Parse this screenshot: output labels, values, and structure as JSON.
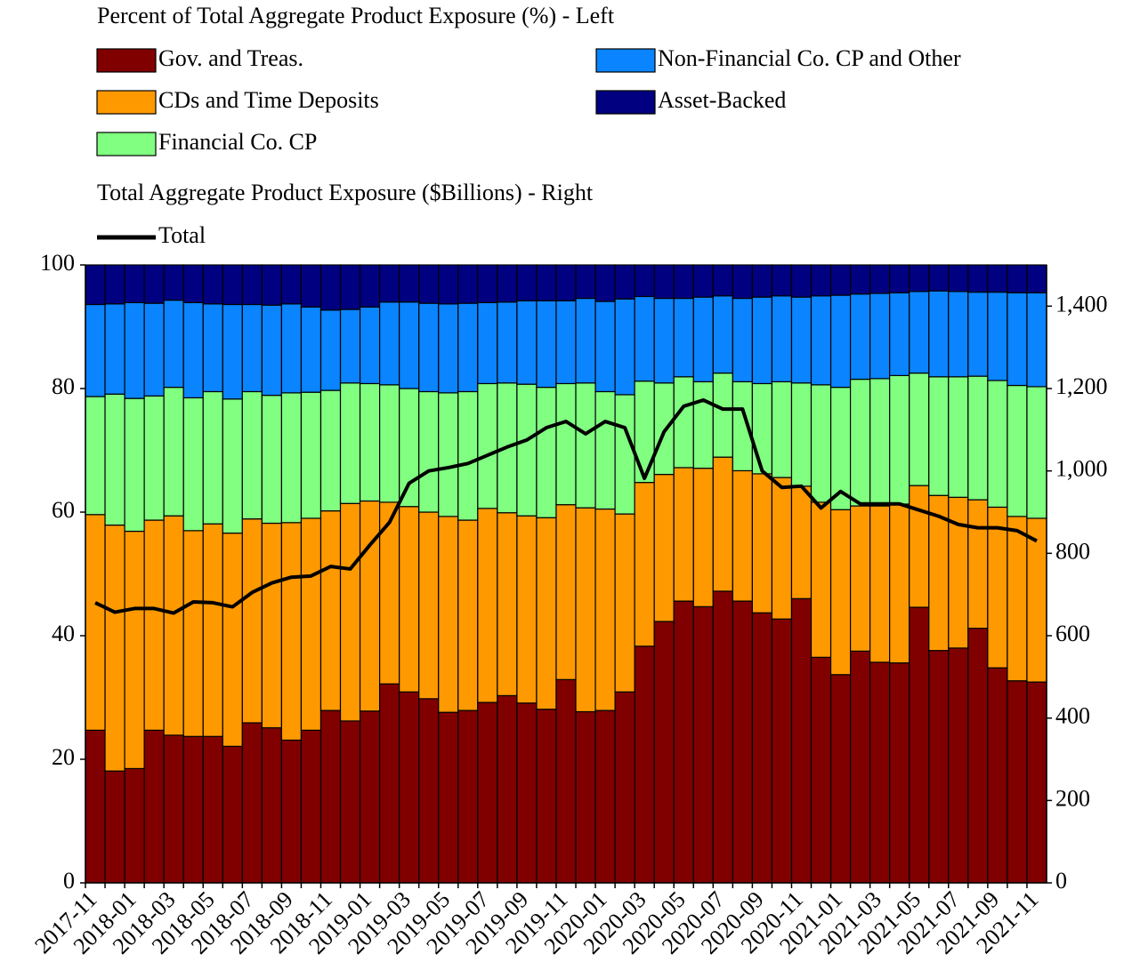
{
  "chart_data": {
    "type": "bar",
    "legend_titles": [
      "Percent of Total Aggregate Product Exposure (%) - Left",
      "Total Aggregate Product Exposure ($Billions) - Right"
    ],
    "categories": [
      "2017-11",
      null,
      "2018-01",
      null,
      "2018-03",
      null,
      "2018-05",
      null,
      "2018-07",
      null,
      "2018-09",
      null,
      "2018-11",
      null,
      "2019-01",
      null,
      "2019-03",
      null,
      "2019-05",
      null,
      "2019-07",
      null,
      "2019-09",
      null,
      "2019-11",
      null,
      "2020-01",
      null,
      "2020-03",
      null,
      "2020-05",
      null,
      "2020-07",
      null,
      "2020-09",
      null,
      "2020-11",
      null,
      "2021-01",
      null,
      "2021-03",
      null,
      "2021-05",
      null,
      "2021-07",
      null,
      "2021-09",
      null,
      "2021-11"
    ],
    "stacked": true,
    "series": [
      {
        "name": "Gov. and Treas.",
        "color": "#800000",
        "values": [
          24.7,
          18.1,
          18.5,
          24.7,
          23.9,
          23.7,
          23.7,
          22.1,
          25.9,
          25.1,
          23.1,
          24.7,
          27.9,
          26.2,
          27.8,
          32.2,
          30.9,
          29.8,
          27.6,
          27.9,
          29.2,
          30.3,
          29.1,
          28.1,
          32.9,
          27.7,
          27.9,
          30.9,
          38.3,
          42.3,
          45.6,
          44.7,
          47.2,
          45.6,
          43.7,
          42.7,
          46.0,
          36.5,
          33.7,
          37.5,
          35.7,
          35.6,
          44.6,
          37.6,
          38.0,
          41.2,
          34.8,
          32.7,
          32.5
        ]
      },
      {
        "name": "CDs and Time Deposits",
        "color": "#FF9900",
        "values": [
          34.9,
          39.8,
          38.4,
          34.0,
          35.5,
          33.3,
          34.4,
          34.5,
          33.0,
          33.1,
          35.2,
          34.3,
          32.3,
          35.2,
          34.0,
          29.4,
          30.0,
          30.2,
          31.7,
          30.8,
          31.4,
          29.6,
          30.3,
          31.0,
          28.3,
          33.0,
          32.6,
          28.8,
          26.5,
          23.8,
          21.6,
          22.4,
          21.7,
          21.1,
          22.5,
          22.9,
          18.2,
          25.1,
          26.7,
          23.5,
          25.3,
          25.7,
          19.7,
          25.1,
          24.4,
          20.8,
          26.0,
          26.6,
          26.5
        ]
      },
      {
        "name": "Financial Co. CP",
        "color": "#80FF80",
        "values": [
          19.1,
          21.2,
          21.5,
          20.1,
          20.8,
          21.5,
          21.4,
          21.7,
          20.6,
          20.7,
          21.0,
          20.4,
          19.5,
          19.5,
          19.0,
          19.0,
          19.1,
          19.5,
          20.0,
          20.8,
          20.2,
          21.0,
          21.3,
          21.1,
          19.6,
          20.2,
          19.0,
          19.3,
          16.4,
          14.8,
          14.7,
          14.0,
          13.6,
          14.4,
          14.6,
          15.5,
          16.7,
          19.0,
          19.8,
          20.5,
          20.6,
          20.8,
          18.2,
          19.2,
          19.5,
          20.0,
          20.5,
          21.2,
          21.3
        ]
      },
      {
        "name": "Non-Financial Co. CP and Other",
        "color": "#0A84FF",
        "values": [
          14.9,
          14.6,
          15.5,
          15.0,
          14.1,
          15.4,
          14.2,
          15.3,
          14.1,
          14.6,
          14.4,
          13.8,
          13.0,
          11.9,
          12.4,
          13.4,
          14.0,
          14.3,
          14.4,
          14.3,
          13.1,
          13.1,
          13.5,
          14.0,
          13.4,
          13.7,
          14.6,
          15.5,
          13.7,
          13.7,
          12.7,
          13.7,
          12.5,
          13.5,
          14.0,
          13.9,
          13.9,
          14.4,
          14.9,
          13.8,
          13.8,
          13.4,
          13.2,
          13.9,
          13.8,
          13.6,
          14.3,
          15.0,
          15.2
        ]
      },
      {
        "name": "Asset-Backed",
        "color": "#000080",
        "values": [
          6.4,
          6.3,
          6.1,
          6.2,
          5.7,
          6.1,
          6.3,
          6.4,
          6.4,
          6.5,
          6.3,
          6.8,
          7.3,
          7.2,
          6.8,
          6.0,
          6.0,
          6.2,
          6.3,
          6.2,
          6.1,
          6.0,
          5.8,
          5.8,
          5.8,
          5.4,
          5.9,
          5.5,
          5.1,
          5.4,
          5.4,
          5.2,
          5.0,
          5.4,
          5.2,
          5.0,
          5.2,
          5.0,
          4.9,
          4.7,
          4.6,
          4.5,
          4.3,
          4.2,
          4.3,
          4.4,
          4.4,
          4.5,
          4.5
        ]
      },
      {
        "name": "Total",
        "color": "#000000",
        "type": "line",
        "axis": "y2",
        "values": [
          680,
          657,
          666,
          666,
          655,
          682,
          680,
          670,
          705,
          728,
          742,
          745,
          768,
          762,
          820,
          875,
          970,
          1000,
          1008,
          1018,
          1038,
          1058,
          1075,
          1105,
          1120,
          1090,
          1120,
          1105,
          982,
          1095,
          1157,
          1172,
          1150,
          1150,
          1000,
          960,
          963,
          910,
          950,
          920,
          920,
          920,
          905,
          890,
          870,
          862,
          862,
          855,
          830
        ]
      }
    ],
    "ylim": [
      0,
      100
    ],
    "yticks": [
      0,
      20,
      40,
      60,
      80,
      100
    ],
    "y2lim": [
      0,
      1500
    ],
    "y2ticks": [
      0,
      200,
      400,
      600,
      800,
      {
        "value": 1000,
        "label": "1,000"
      },
      {
        "value": 1200,
        "label": "1,200"
      },
      {
        "value": 1400,
        "label": "1,400"
      }
    ],
    "grid": false
  }
}
